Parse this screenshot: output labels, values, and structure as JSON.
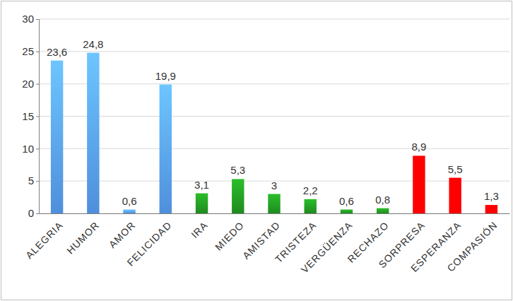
{
  "chart_data": {
    "type": "bar",
    "categories": [
      "ALEGRIA",
      "HUMOR",
      "AMOR",
      "FELICIDAD",
      "IRA",
      "MIEDO",
      "AMISTAD",
      "TRISTEZA",
      "VERGÜENZA",
      "RECHAZO",
      "SORPRESA",
      "ESPERANZA",
      "COMPASIÓN"
    ],
    "values": [
      23.6,
      24.8,
      0.6,
      19.9,
      3.1,
      5.3,
      3,
      2.2,
      0.6,
      0.8,
      8.9,
      5.5,
      1.3
    ],
    "value_labels": [
      "23,6",
      "24,8",
      "0,6",
      "19,9",
      "3,1",
      "5,3",
      "3",
      "2,2",
      "0,6",
      "0,8",
      "8,9",
      "5,5",
      "1,3"
    ],
    "colors": [
      "#4f8fdc",
      "#4f8fdc",
      "#4f8fdc",
      "#4f8fdc",
      "#1f8a1f",
      "#1f8a1f",
      "#1f8a1f",
      "#1f8a1f",
      "#1f8a1f",
      "#1f8a1f",
      "#ff0000",
      "#ff0000",
      "#ff0000"
    ],
    "ylim": [
      0,
      30
    ],
    "yticks": [
      0,
      5,
      10,
      15,
      20,
      25,
      30
    ],
    "grid": true,
    "data_labels": true
  }
}
